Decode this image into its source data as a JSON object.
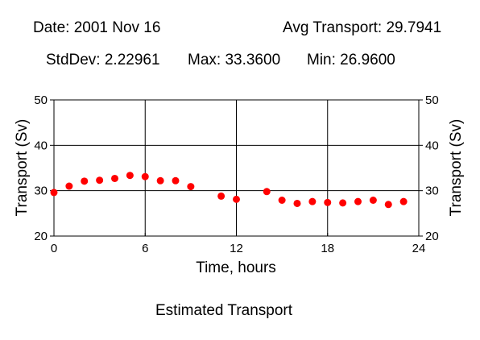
{
  "header": {
    "date": "Date: 2001 Nov 16",
    "avg": "Avg Transport: 29.7941",
    "stddev": "StdDev: 2.22961",
    "max": "Max: 33.3600",
    "min": "Min: 26.9600"
  },
  "footer": {
    "caption": "Estimated Transport"
  },
  "chart_data": {
    "type": "scatter",
    "title": "",
    "xlabel": "Time, hours",
    "ylabel": "Transport (Sv)",
    "ylabel_right": "Transport (Sv)",
    "xlim": [
      0,
      24
    ],
    "ylim": [
      20,
      50
    ],
    "xticks": [
      "0",
      "6",
      "12",
      "18",
      "24"
    ],
    "yticks": [
      "20",
      "30",
      "40",
      "50"
    ],
    "grid": true,
    "marker_color": "#ff0000",
    "points": [
      {
        "x": 0,
        "y": 29.6
      },
      {
        "x": 1,
        "y": 31.0
      },
      {
        "x": 2,
        "y": 32.1
      },
      {
        "x": 3,
        "y": 32.3
      },
      {
        "x": 4,
        "y": 32.7
      },
      {
        "x": 5,
        "y": 33.36
      },
      {
        "x": 6,
        "y": 33.1
      },
      {
        "x": 7,
        "y": 32.2
      },
      {
        "x": 8,
        "y": 32.2
      },
      {
        "x": 9,
        "y": 30.9
      },
      {
        "x": 11,
        "y": 28.8
      },
      {
        "x": 12,
        "y": 28.1
      },
      {
        "x": 14,
        "y": 29.8
      },
      {
        "x": 15,
        "y": 27.9
      },
      {
        "x": 16,
        "y": 27.2
      },
      {
        "x": 17,
        "y": 27.6
      },
      {
        "x": 18,
        "y": 27.4
      },
      {
        "x": 19,
        "y": 27.3
      },
      {
        "x": 20,
        "y": 27.6
      },
      {
        "x": 21,
        "y": 27.9
      },
      {
        "x": 22,
        "y": 26.96
      },
      {
        "x": 23,
        "y": 27.6
      }
    ]
  }
}
